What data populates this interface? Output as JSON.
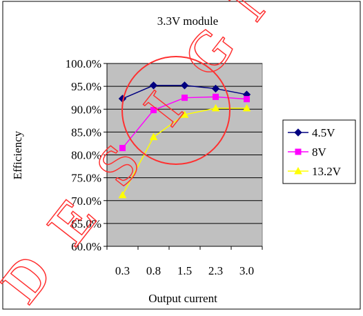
{
  "chart_data": {
    "type": "line",
    "title": "3.3V module",
    "xlabel": "Output current",
    "ylabel": "Efficiency",
    "categories": [
      "0.3",
      "0.8",
      "1.5",
      "2.3",
      "3.0"
    ],
    "ylim": [
      0.6,
      1.0
    ],
    "yticks": [
      0.6,
      0.65,
      0.7,
      0.75,
      0.8,
      0.85,
      0.9,
      0.95,
      1.0
    ],
    "ytick_labels": [
      "60.0%",
      "65.0%",
      "70.0%",
      "75.0%",
      "80.0%",
      "85.0%",
      "90.0%",
      "95.0%",
      "100.0%"
    ],
    "grid": "horizontal",
    "plot_background": "#c0c0c0",
    "legend_position": "right",
    "series": [
      {
        "name": "4.5V",
        "values": [
          0.923,
          0.952,
          0.952,
          0.945,
          0.932
        ],
        "color": "#000080",
        "marker": "diamond"
      },
      {
        "name": "8V",
        "values": [
          0.815,
          0.898,
          0.925,
          0.927,
          0.922
        ],
        "color": "#ff00ff",
        "marker": "square"
      },
      {
        "name": "13.2V",
        "values": [
          0.712,
          0.839,
          0.888,
          0.902,
          0.902
        ],
        "color": "#ffff00",
        "marker": "triangle"
      }
    ]
  },
  "watermark": {
    "text": "DESIGN",
    "color": "#ff3030"
  }
}
